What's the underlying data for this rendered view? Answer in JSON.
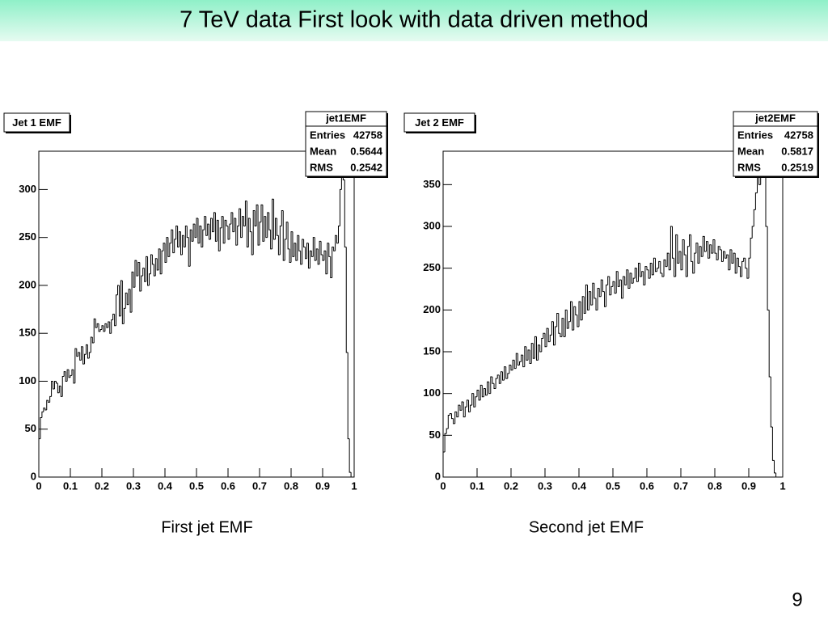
{
  "title": "7 TeV data First look with data driven method",
  "captions": [
    "First jet EMF",
    "Second jet EMF"
  ],
  "page_number": 9,
  "chart_data": [
    {
      "type": "histogram",
      "title": "Jet 1 EMF",
      "color": "#000000",
      "stats": {
        "name": "jet1EMF",
        "labels": [
          "Entries",
          "Mean",
          "RMS"
        ],
        "values": [
          42758,
          0.5644,
          0.2542
        ]
      },
      "xlim": [
        0,
        1
      ],
      "ylim": [
        0,
        340
      ],
      "xticks": [
        0,
        0.1,
        0.2,
        0.3,
        0.4,
        0.5,
        0.6,
        0.7,
        0.8,
        0.9,
        1
      ],
      "yticks": [
        0,
        50,
        100,
        150,
        200,
        250,
        300
      ],
      "bins": [
        0,
        0.005,
        0.01,
        0.015,
        0.02,
        0.025,
        0.03,
        0.035,
        0.04,
        0.045,
        0.05,
        0.055,
        0.06,
        0.065,
        0.07,
        0.075,
        0.08,
        0.085,
        0.09,
        0.095,
        0.1,
        0.105,
        0.11,
        0.115,
        0.12,
        0.125,
        0.13,
        0.135,
        0.14,
        0.145,
        0.15,
        0.155,
        0.16,
        0.165,
        0.17,
        0.175,
        0.18,
        0.185,
        0.19,
        0.195,
        0.2,
        0.205,
        0.21,
        0.215,
        0.22,
        0.225,
        0.23,
        0.235,
        0.24,
        0.245,
        0.25,
        0.255,
        0.26,
        0.265,
        0.27,
        0.275,
        0.28,
        0.285,
        0.29,
        0.295,
        0.3,
        0.305,
        0.31,
        0.315,
        0.32,
        0.325,
        0.33,
        0.335,
        0.34,
        0.345,
        0.35,
        0.355,
        0.36,
        0.365,
        0.37,
        0.375,
        0.38,
        0.385,
        0.39,
        0.395,
        0.4,
        0.405,
        0.41,
        0.415,
        0.42,
        0.425,
        0.43,
        0.435,
        0.44,
        0.445,
        0.45,
        0.455,
        0.46,
        0.465,
        0.47,
        0.475,
        0.48,
        0.485,
        0.49,
        0.495,
        0.5,
        0.505,
        0.51,
        0.515,
        0.52,
        0.525,
        0.53,
        0.535,
        0.54,
        0.545,
        0.55,
        0.555,
        0.56,
        0.565,
        0.57,
        0.575,
        0.58,
        0.585,
        0.59,
        0.595,
        0.6,
        0.605,
        0.61,
        0.615,
        0.62,
        0.625,
        0.63,
        0.635,
        0.64,
        0.645,
        0.65,
        0.655,
        0.66,
        0.665,
        0.67,
        0.675,
        0.68,
        0.685,
        0.69,
        0.695,
        0.7,
        0.705,
        0.71,
        0.715,
        0.72,
        0.725,
        0.73,
        0.735,
        0.74,
        0.745,
        0.75,
        0.755,
        0.76,
        0.765,
        0.77,
        0.775,
        0.78,
        0.785,
        0.79,
        0.795,
        0.8,
        0.805,
        0.81,
        0.815,
        0.82,
        0.825,
        0.83,
        0.835,
        0.84,
        0.845,
        0.85,
        0.855,
        0.86,
        0.865,
        0.87,
        0.875,
        0.88,
        0.885,
        0.89,
        0.895,
        0.9,
        0.905,
        0.91,
        0.915,
        0.92,
        0.925,
        0.93,
        0.935,
        0.94,
        0.945,
        0.95,
        0.955,
        0.96,
        0.965,
        0.97,
        0.975,
        0.98,
        0.985,
        0.99,
        0.995,
        1
      ],
      "values": [
        40,
        62,
        68,
        72,
        70,
        80,
        78,
        84,
        100,
        92,
        100,
        98,
        88,
        95,
        84,
        105,
        110,
        100,
        112,
        104,
        106,
        112,
        98,
        134,
        126,
        130,
        122,
        136,
        118,
        128,
        138,
        124,
        130,
        146,
        140,
        165,
        156,
        160,
        152,
        154,
        158,
        152,
        160,
        156,
        162,
        150,
        164,
        170,
        158,
        190,
        200,
        168,
        205,
        160,
        176,
        192,
        180,
        196,
        172,
        214,
        198,
        226,
        210,
        224,
        194,
        210,
        218,
        204,
        230,
        200,
        212,
        232,
        222,
        210,
        228,
        216,
        238,
        212,
        236,
        244,
        224,
        250,
        230,
        244,
        258,
        234,
        248,
        262,
        240,
        256,
        232,
        252,
        240,
        262,
        250,
        220,
        258,
        246,
        264,
        250,
        270,
        244,
        262,
        240,
        258,
        272,
        252,
        264,
        248,
        270,
        256,
        276,
        246,
        268,
        236,
        260,
        272,
        244,
        268,
        262,
        248,
        264,
        276,
        256,
        270,
        242,
        262,
        280,
        250,
        272,
        262,
        288,
        240,
        270,
        256,
        232,
        278,
        262,
        284,
        242,
        266,
        284,
        246,
        272,
        250,
        276,
        258,
        238,
        290,
        248,
        270,
        252,
        232,
        262,
        278,
        226,
        248,
        266,
        238,
        224,
        256,
        230,
        244,
        226,
        252,
        236,
        222,
        248,
        240,
        228,
        244,
        218,
        236,
        230,
        250,
        226,
        238,
        222,
        246,
        232,
        226,
        236,
        212,
        244,
        230,
        208,
        240,
        236,
        252,
        244,
        262,
        300,
        340,
        310,
        240,
        130,
        40,
        5,
        0,
        0
      ]
    },
    {
      "type": "histogram",
      "title": "Jet 2 EMF",
      "color": "#000000",
      "stats": {
        "name": "jet2EMF",
        "labels": [
          "Entries",
          "Mean",
          "RMS"
        ],
        "values": [
          42758,
          0.5817,
          0.2519
        ]
      },
      "xlim": [
        0,
        1
      ],
      "ylim": [
        0,
        390
      ],
      "xticks": [
        0,
        0.1,
        0.2,
        0.3,
        0.4,
        0.5,
        0.6,
        0.7,
        0.8,
        0.9,
        1
      ],
      "yticks": [
        0,
        50,
        100,
        150,
        200,
        250,
        300,
        350
      ],
      "bins": [
        0,
        0.005,
        0.01,
        0.015,
        0.02,
        0.025,
        0.03,
        0.035,
        0.04,
        0.045,
        0.05,
        0.055,
        0.06,
        0.065,
        0.07,
        0.075,
        0.08,
        0.085,
        0.09,
        0.095,
        0.1,
        0.105,
        0.11,
        0.115,
        0.12,
        0.125,
        0.13,
        0.135,
        0.14,
        0.145,
        0.15,
        0.155,
        0.16,
        0.165,
        0.17,
        0.175,
        0.18,
        0.185,
        0.19,
        0.195,
        0.2,
        0.205,
        0.21,
        0.215,
        0.22,
        0.225,
        0.23,
        0.235,
        0.24,
        0.245,
        0.25,
        0.255,
        0.26,
        0.265,
        0.27,
        0.275,
        0.28,
        0.285,
        0.29,
        0.295,
        0.3,
        0.305,
        0.31,
        0.315,
        0.32,
        0.325,
        0.33,
        0.335,
        0.34,
        0.345,
        0.35,
        0.355,
        0.36,
        0.365,
        0.37,
        0.375,
        0.38,
        0.385,
        0.39,
        0.395,
        0.4,
        0.405,
        0.41,
        0.415,
        0.42,
        0.425,
        0.43,
        0.435,
        0.44,
        0.445,
        0.45,
        0.455,
        0.46,
        0.465,
        0.47,
        0.475,
        0.48,
        0.485,
        0.49,
        0.495,
        0.5,
        0.505,
        0.51,
        0.515,
        0.52,
        0.525,
        0.53,
        0.535,
        0.54,
        0.545,
        0.55,
        0.555,
        0.56,
        0.565,
        0.57,
        0.575,
        0.58,
        0.585,
        0.59,
        0.595,
        0.6,
        0.605,
        0.61,
        0.615,
        0.62,
        0.625,
        0.63,
        0.635,
        0.64,
        0.645,
        0.65,
        0.655,
        0.66,
        0.665,
        0.67,
        0.675,
        0.68,
        0.685,
        0.69,
        0.695,
        0.7,
        0.705,
        0.71,
        0.715,
        0.72,
        0.725,
        0.73,
        0.735,
        0.74,
        0.745,
        0.75,
        0.755,
        0.76,
        0.765,
        0.77,
        0.775,
        0.78,
        0.785,
        0.79,
        0.795,
        0.8,
        0.805,
        0.81,
        0.815,
        0.82,
        0.825,
        0.83,
        0.835,
        0.84,
        0.845,
        0.85,
        0.855,
        0.86,
        0.865,
        0.87,
        0.875,
        0.88,
        0.885,
        0.89,
        0.895,
        0.9,
        0.905,
        0.91,
        0.915,
        0.92,
        0.925,
        0.93,
        0.935,
        0.94,
        0.945,
        0.95,
        0.955,
        0.96,
        0.965,
        0.97,
        0.975,
        0.98,
        0.985,
        0.99,
        0.995,
        1
      ],
      "values": [
        30,
        52,
        58,
        74,
        76,
        70,
        64,
        78,
        72,
        86,
        80,
        90,
        72,
        84,
        92,
        78,
        86,
        100,
        84,
        96,
        104,
        92,
        110,
        96,
        106,
        98,
        114,
        100,
        120,
        112,
        106,
        118,
        122,
        112,
        126,
        116,
        132,
        118,
        124,
        134,
        128,
        140,
        130,
        148,
        134,
        138,
        146,
        132,
        156,
        140,
        152,
        136,
        160,
        142,
        168,
        140,
        158,
        150,
        166,
        172,
        156,
        178,
        162,
        170,
        186,
        158,
        180,
        196,
        172,
        168,
        190,
        168,
        200,
        178,
        186,
        210,
        176,
        204,
        194,
        180,
        210,
        188,
        216,
        196,
        230,
        200,
        222,
        206,
        232,
        214,
        200,
        226,
        216,
        236,
        222,
        204,
        230,
        240,
        218,
        228,
        234,
        220,
        246,
        228,
        236,
        214,
        240,
        230,
        248,
        226,
        244,
        232,
        238,
        250,
        234,
        256,
        240,
        246,
        230,
        252,
        248,
        238,
        256,
        242,
        262,
        246,
        250,
        258,
        244,
        240,
        260,
        252,
        268,
        248,
        300,
        262,
        240,
        290,
        256,
        270,
        248,
        284,
        266,
        240,
        276,
        290,
        258,
        244,
        268,
        280,
        256,
        276,
        264,
        288,
        270,
        282,
        262,
        278,
        268,
        284,
        268,
        260,
        276,
        272,
        258,
        270,
        262,
        266,
        248,
        272,
        256,
        268,
        244,
        262,
        252,
        240,
        258,
        262,
        250,
        238,
        262,
        286,
        300,
        320,
        340,
        366,
        350,
        380,
        385,
        380,
        300,
        200,
        120,
        60,
        20,
        5,
        0,
        0,
        0,
        0
      ]
    }
  ]
}
